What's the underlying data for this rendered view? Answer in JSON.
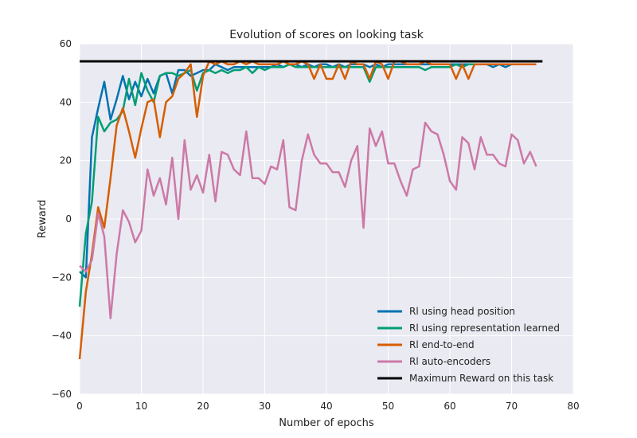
{
  "chart_data": {
    "type": "line",
    "title": "Evolution of scores on looking task",
    "xlabel": "Number of epochs",
    "ylabel": "Reward",
    "xlim": [
      0,
      80
    ],
    "ylim": [
      -60,
      60
    ],
    "xticks": [
      0,
      10,
      20,
      30,
      40,
      50,
      60,
      70,
      80
    ],
    "yticks": [
      -60,
      -40,
      -20,
      0,
      20,
      40,
      60
    ],
    "grid": true,
    "legend_position": "lower-right",
    "background_color": "#eaeaf2",
    "grid_color": "#ffffff",
    "series": [
      {
        "name": "Rl using head position",
        "color": "#0072b2",
        "x": [
          0,
          1,
          2,
          3,
          4,
          5,
          6,
          7,
          8,
          9,
          10,
          11,
          12,
          13,
          14,
          15,
          16,
          17,
          18,
          19,
          20,
          21,
          22,
          23,
          24,
          25,
          26,
          27,
          28,
          29,
          30,
          31,
          32,
          33,
          34,
          35,
          36,
          37,
          38,
          39,
          40,
          41,
          42,
          43,
          44,
          45,
          46,
          47,
          48,
          49,
          50,
          51,
          52,
          53,
          54,
          55,
          56,
          57,
          58,
          59,
          60,
          61,
          62,
          63,
          64,
          65,
          66,
          67,
          68,
          69,
          70,
          71,
          72,
          73,
          74
        ],
        "values": [
          -18,
          -20,
          28,
          38,
          47,
          34,
          41,
          49,
          41,
          47,
          42,
          48,
          43,
          49,
          50,
          43,
          51,
          51,
          49,
          50,
          51,
          51,
          53,
          52,
          51,
          52,
          52,
          52,
          52,
          52,
          52,
          52,
          53,
          52,
          53,
          53,
          52,
          53,
          52,
          53,
          53,
          52,
          53,
          52,
          53,
          53,
          53,
          52,
          53,
          52,
          53,
          53,
          53,
          53,
          53,
          53,
          53,
          53,
          53,
          53,
          53,
          53,
          53,
          53,
          53,
          53,
          53,
          52,
          53,
          52,
          53,
          53,
          53,
          53,
          53
        ]
      },
      {
        "name": "Rl using representation learned",
        "color": "#009e73",
        "x": [
          0,
          1,
          2,
          3,
          4,
          5,
          6,
          7,
          8,
          9,
          10,
          11,
          12,
          13,
          14,
          15,
          16,
          17,
          18,
          19,
          20,
          21,
          22,
          23,
          24,
          25,
          26,
          27,
          28,
          29,
          30,
          31,
          32,
          33,
          34,
          35,
          36,
          37,
          38,
          39,
          40,
          41,
          42,
          43,
          44,
          45,
          46,
          47,
          48,
          49,
          50,
          51,
          52,
          53,
          54,
          55,
          56,
          57,
          58,
          59,
          60,
          61,
          62,
          63,
          64,
          65,
          66,
          67,
          68,
          69,
          70,
          71,
          72,
          73,
          74
        ],
        "values": [
          -30,
          -5,
          6,
          35,
          30,
          33,
          34,
          37,
          48,
          39,
          50,
          44,
          40,
          49,
          50,
          50,
          49,
          50,
          51,
          44,
          50,
          51,
          50,
          51,
          50,
          51,
          51,
          52,
          50,
          52,
          51,
          52,
          52,
          52,
          53,
          52,
          52,
          52,
          52,
          52,
          52,
          52,
          52,
          52,
          52,
          52,
          52,
          47,
          52,
          52,
          52,
          52,
          52,
          52,
          52,
          52,
          51,
          52,
          52,
          52,
          52,
          53,
          52,
          53,
          53,
          53,
          53,
          53,
          53,
          53,
          53,
          53,
          53,
          53,
          53
        ]
      },
      {
        "name": "Rl end-to-end",
        "color": "#d55e00",
        "x": [
          0,
          1,
          2,
          3,
          4,
          5,
          6,
          7,
          8,
          9,
          10,
          11,
          12,
          13,
          14,
          15,
          16,
          17,
          18,
          19,
          20,
          21,
          22,
          23,
          24,
          25,
          26,
          27,
          28,
          29,
          30,
          31,
          32,
          33,
          34,
          35,
          36,
          37,
          38,
          39,
          40,
          41,
          42,
          43,
          44,
          45,
          46,
          47,
          48,
          49,
          50,
          51,
          52,
          53,
          54,
          55,
          56,
          57,
          58,
          59,
          60,
          61,
          62,
          63,
          64,
          65,
          66,
          67,
          68,
          69,
          70,
          71,
          72,
          73,
          74
        ],
        "values": [
          -48,
          -25,
          -12,
          4,
          -3,
          14,
          32,
          38,
          30,
          21,
          31,
          40,
          41,
          28,
          40,
          42,
          48,
          50,
          53,
          35,
          49,
          54,
          53,
          54,
          53,
          53,
          54,
          53,
          54,
          53,
          53,
          53,
          53,
          54,
          53,
          53,
          54,
          53,
          48,
          53,
          48,
          48,
          53,
          48,
          54,
          53,
          53,
          48,
          54,
          53,
          48,
          54,
          54,
          53,
          53,
          53,
          54,
          53,
          53,
          53,
          53,
          48,
          53,
          48,
          53,
          53,
          53,
          53,
          53,
          53,
          53,
          53,
          53,
          53,
          53
        ]
      },
      {
        "name": "Rl auto-encoders",
        "color": "#cc79a7",
        "x": [
          0,
          1,
          2,
          3,
          4,
          5,
          6,
          7,
          8,
          9,
          10,
          11,
          12,
          13,
          14,
          15,
          16,
          17,
          18,
          19,
          20,
          21,
          22,
          23,
          24,
          25,
          26,
          27,
          28,
          29,
          30,
          31,
          32,
          33,
          34,
          35,
          36,
          37,
          38,
          39,
          40,
          41,
          42,
          43,
          44,
          45,
          46,
          47,
          48,
          49,
          50,
          51,
          52,
          53,
          54,
          55,
          56,
          57,
          58,
          59,
          60,
          61,
          62,
          63,
          64,
          65,
          66,
          67,
          68,
          69,
          70,
          71,
          72,
          73,
          74
        ],
        "values": [
          -16,
          -18,
          -14,
          2,
          -6,
          -34,
          -12,
          3,
          -1,
          -8,
          -4,
          17,
          8,
          14,
          5,
          21,
          0,
          27,
          10,
          15,
          9,
          22,
          6,
          23,
          22,
          17,
          15,
          30,
          14,
          14,
          12,
          18,
          17,
          27,
          4,
          3,
          20,
          29,
          22,
          19,
          19,
          16,
          16,
          11,
          20,
          25,
          -3,
          31,
          25,
          30,
          19,
          19,
          13,
          8,
          17,
          18,
          33,
          30,
          29,
          22,
          13,
          10,
          28,
          26,
          17,
          28,
          22,
          22,
          19,
          18,
          29,
          27,
          19,
          23,
          18
        ]
      },
      {
        "name": "Maximum Reward on this task",
        "color": "#000000",
        "x": [
          0,
          75
        ],
        "values": [
          54,
          54
        ]
      }
    ]
  }
}
